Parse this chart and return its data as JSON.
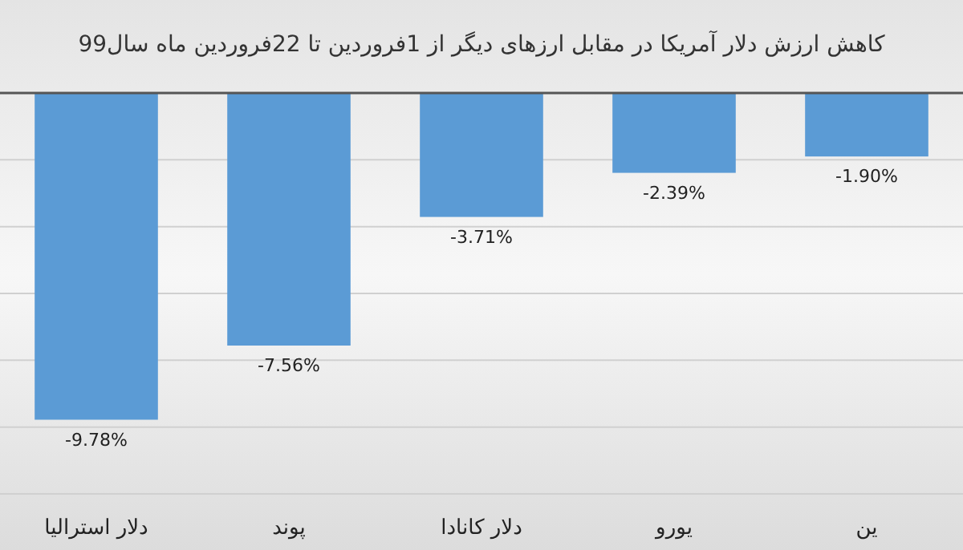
{
  "chart_data": {
    "type": "bar",
    "title": "کاهش ارزش دلار آمریکا در مقابل ارزهای دیگر از 1فروردین تا 22فروردین ماه سال99",
    "categories": [
      "دلار استرالیا",
      "پوند",
      "دلار کانادا",
      "یورو",
      "ین"
    ],
    "values": [
      -9.78,
      -7.56,
      -3.71,
      -2.39,
      -1.9
    ],
    "value_labels": [
      "-9.78%",
      "-7.56%",
      "-3.71%",
      "-2.39%",
      "-1.90%"
    ],
    "color": "#5b9bd5",
    "ylim": [
      -12,
      0
    ],
    "yticks": [
      {
        "value": 0,
        "label": null
      },
      {
        "value": -2,
        "label": null
      },
      {
        "value": -4,
        "label": null
      },
      {
        "value": -6,
        "label": null
      },
      {
        "value": -8,
        "label": null
      },
      {
        "value": -10,
        "label": null
      },
      {
        "value": -12,
        "label": null
      }
    ],
    "grid": "y",
    "tick_labels": "x"
  }
}
